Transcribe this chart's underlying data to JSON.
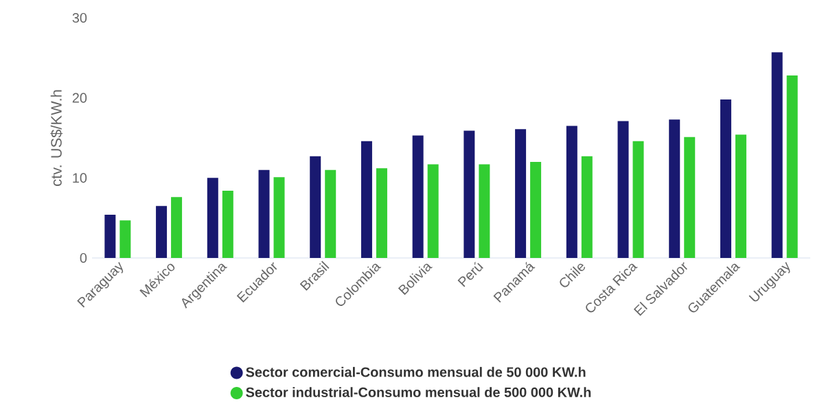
{
  "chart_data": {
    "type": "bar",
    "ylabel": "ctv. US$/KW.h",
    "ylim": [
      0,
      30
    ],
    "yticks": [
      0,
      10,
      20,
      30
    ],
    "legend": "bottom",
    "categories": [
      "Paraguay",
      "México",
      "Argentina",
      "Ecuador",
      "Brasil",
      "Colombia",
      "Bolivia",
      "Perú",
      "Panamá",
      "Chile",
      "Costa Rica",
      "El Salvador",
      "Guatemala",
      "Uruguay"
    ],
    "series": [
      {
        "name": "Sector comercial-Consumo mensual de 50 000 KW.h",
        "color": "#191970",
        "values": [
          5.4,
          6.5,
          10.0,
          11.0,
          12.7,
          14.6,
          15.3,
          15.9,
          16.1,
          16.5,
          17.1,
          17.3,
          19.8,
          25.7
        ]
      },
      {
        "name": "Sector industrial-Consumo mensual de 500 000 KW.h",
        "color": "#32cd32",
        "values": [
          4.7,
          7.6,
          8.4,
          10.1,
          11.0,
          11.2,
          11.7,
          11.7,
          12.0,
          12.7,
          14.6,
          15.1,
          15.4,
          22.8
        ]
      }
    ]
  }
}
